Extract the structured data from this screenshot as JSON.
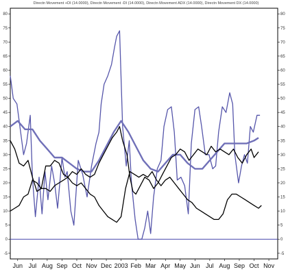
{
  "chart_data": {
    "type": "line",
    "title": "Directn Movement +DI (14.0000), Directn Movement -DI (14.0000), Directn Movement ADX (14.0000), Directn Movement DX (14.0000)",
    "ylim": [
      -7,
      82
    ],
    "y_ticks": [
      -5,
      0,
      5,
      10,
      15,
      20,
      25,
      30,
      35,
      40,
      45,
      50,
      55,
      60,
      65,
      70,
      75,
      80
    ],
    "x_ticks": [
      "Jun",
      "Jul",
      "Aug",
      "Sep",
      "Oct",
      "Nov",
      "Dec",
      "2003",
      "Feb",
      "Mar",
      "Apr",
      "May",
      "Jun",
      "Jul",
      "Aug",
      "Sep",
      "Oct",
      "Nov"
    ],
    "x_range": [
      0,
      18.1
    ],
    "grid": false,
    "zero_line": 0,
    "colors": {
      "dx": "#5555aa",
      "adx": "#7070b8",
      "di": "#000000",
      "zero": "#4444aa"
    },
    "series": [
      {
        "key": "dx",
        "stroke_width": 1.3,
        "points": [
          [
            0,
            58
          ],
          [
            0.2,
            50
          ],
          [
            0.45,
            48
          ],
          [
            0.7,
            38
          ],
          [
            0.9,
            30
          ],
          [
            1.1,
            34
          ],
          [
            1.35,
            44
          ],
          [
            1.5,
            22
          ],
          [
            1.7,
            8
          ],
          [
            1.95,
            22
          ],
          [
            2.15,
            9
          ],
          [
            2.35,
            24
          ],
          [
            2.55,
            14
          ],
          [
            2.8,
            26
          ],
          [
            3.0,
            20
          ],
          [
            3.2,
            11
          ],
          [
            3.5,
            29
          ],
          [
            3.7,
            22
          ],
          [
            3.85,
            24
          ],
          [
            4.1,
            10
          ],
          [
            4.3,
            5
          ],
          [
            4.6,
            28
          ],
          [
            4.9,
            23
          ],
          [
            5.2,
            15
          ],
          [
            5.5,
            26
          ],
          [
            5.8,
            34
          ],
          [
            6.0,
            38
          ],
          [
            6.15,
            48
          ],
          [
            6.35,
            55
          ],
          [
            6.6,
            58
          ],
          [
            6.85,
            62
          ],
          [
            7.05,
            68
          ],
          [
            7.2,
            72
          ],
          [
            7.4,
            74
          ],
          [
            7.6,
            40
          ],
          [
            7.85,
            26
          ],
          [
            8.05,
            35
          ],
          [
            8.2,
            20
          ],
          [
            8.45,
            7
          ],
          [
            8.65,
            0
          ],
          [
            8.9,
            0
          ],
          [
            9.1,
            4
          ],
          [
            9.3,
            10
          ],
          [
            9.5,
            2
          ],
          [
            9.7,
            15
          ],
          [
            9.95,
            25
          ],
          [
            10.2,
            28
          ],
          [
            10.4,
            40
          ],
          [
            10.65,
            46
          ],
          [
            10.9,
            47
          ],
          [
            11.1,
            38
          ],
          [
            11.3,
            21
          ],
          [
            11.55,
            22
          ],
          [
            11.8,
            19
          ],
          [
            12.05,
            9
          ],
          [
            12.25,
            34
          ],
          [
            12.5,
            46
          ],
          [
            12.75,
            47
          ],
          [
            12.95,
            40
          ],
          [
            13.2,
            30
          ],
          [
            13.45,
            30
          ],
          [
            13.7,
            25
          ],
          [
            13.9,
            26
          ],
          [
            14.1,
            38
          ],
          [
            14.35,
            47
          ],
          [
            14.6,
            45
          ],
          [
            14.85,
            52
          ],
          [
            15.05,
            48
          ],
          [
            15.2,
            30
          ],
          [
            15.45,
            20
          ],
          [
            15.65,
            26
          ],
          [
            15.85,
            30
          ],
          [
            16.05,
            27
          ],
          [
            16.25,
            40
          ],
          [
            16.45,
            38
          ],
          [
            16.7,
            44
          ],
          [
            16.9,
            44
          ]
        ]
      },
      {
        "key": "adx",
        "stroke_width": 2.4,
        "points": [
          [
            0,
            40
          ],
          [
            0.5,
            42
          ],
          [
            1,
            39
          ],
          [
            1.5,
            39
          ],
          [
            2,
            35
          ],
          [
            2.5,
            32
          ],
          [
            3,
            29
          ],
          [
            3.5,
            29
          ],
          [
            4,
            27
          ],
          [
            4.5,
            25
          ],
          [
            5,
            24
          ],
          [
            5.5,
            24
          ],
          [
            6,
            28
          ],
          [
            6.5,
            33
          ],
          [
            7,
            38
          ],
          [
            7.5,
            42
          ],
          [
            8,
            38
          ],
          [
            8.5,
            33
          ],
          [
            9,
            28
          ],
          [
            9.5,
            25
          ],
          [
            10,
            24
          ],
          [
            10.5,
            27
          ],
          [
            11,
            30
          ],
          [
            11.5,
            30
          ],
          [
            12,
            27
          ],
          [
            12.5,
            25
          ],
          [
            13,
            25
          ],
          [
            13.5,
            28
          ],
          [
            14,
            31
          ],
          [
            14.5,
            34
          ],
          [
            15,
            34
          ],
          [
            15.5,
            34
          ],
          [
            16,
            34
          ],
          [
            16.5,
            35
          ],
          [
            16.8,
            36
          ]
        ]
      },
      {
        "key": "di_a",
        "stroke_width": 1.3,
        "points": [
          [
            0,
            35
          ],
          [
            0.3,
            32
          ],
          [
            0.6,
            27
          ],
          [
            0.9,
            26
          ],
          [
            1.2,
            28
          ],
          [
            1.5,
            22
          ],
          [
            1.8,
            17
          ],
          [
            2.1,
            18
          ],
          [
            2.4,
            26
          ],
          [
            2.7,
            26
          ],
          [
            3.0,
            28
          ],
          [
            3.3,
            27
          ],
          [
            3.6,
            23
          ],
          [
            3.9,
            22
          ],
          [
            4.2,
            24
          ],
          [
            4.5,
            23
          ],
          [
            4.8,
            25
          ],
          [
            5.1,
            23
          ],
          [
            5.4,
            22
          ],
          [
            5.7,
            23
          ],
          [
            6.0,
            27
          ],
          [
            6.3,
            30
          ],
          [
            6.6,
            33
          ],
          [
            6.9,
            36
          ],
          [
            7.2,
            38
          ],
          [
            7.4,
            40
          ],
          [
            7.6,
            35
          ],
          [
            7.9,
            30
          ],
          [
            8.1,
            22
          ],
          [
            8.3,
            17
          ],
          [
            8.5,
            16
          ],
          [
            8.8,
            19
          ],
          [
            9.1,
            22
          ],
          [
            9.4,
            21
          ],
          [
            9.7,
            18
          ],
          [
            10.0,
            20
          ],
          [
            10.3,
            23
          ],
          [
            10.6,
            26
          ],
          [
            10.9,
            29
          ],
          [
            11.2,
            30
          ],
          [
            11.5,
            32
          ],
          [
            11.8,
            31
          ],
          [
            12.1,
            28
          ],
          [
            12.4,
            30
          ],
          [
            12.7,
            32
          ],
          [
            13.0,
            31
          ],
          [
            13.3,
            30
          ],
          [
            13.6,
            33
          ],
          [
            13.9,
            31
          ],
          [
            14.2,
            32
          ],
          [
            14.5,
            31
          ],
          [
            14.8,
            30
          ],
          [
            15.1,
            32
          ],
          [
            15.4,
            29
          ],
          [
            15.7,
            27
          ],
          [
            16.0,
            30
          ],
          [
            16.3,
            32
          ],
          [
            16.5,
            29
          ],
          [
            16.8,
            31
          ]
        ]
      },
      {
        "key": "di_b",
        "stroke_width": 1.3,
        "points": [
          [
            0,
            10
          ],
          [
            0.3,
            11
          ],
          [
            0.6,
            12
          ],
          [
            0.9,
            15
          ],
          [
            1.2,
            16
          ],
          [
            1.5,
            21
          ],
          [
            1.8,
            20
          ],
          [
            2.1,
            18
          ],
          [
            2.4,
            18
          ],
          [
            2.7,
            17
          ],
          [
            3.0,
            19
          ],
          [
            3.3,
            20
          ],
          [
            3.6,
            21
          ],
          [
            3.9,
            22
          ],
          [
            4.2,
            20
          ],
          [
            4.5,
            19
          ],
          [
            4.8,
            20
          ],
          [
            5.1,
            18
          ],
          [
            5.4,
            16
          ],
          [
            5.7,
            15
          ],
          [
            6.0,
            12
          ],
          [
            6.3,
            10
          ],
          [
            6.6,
            8
          ],
          [
            6.9,
            7
          ],
          [
            7.2,
            6
          ],
          [
            7.5,
            8
          ],
          [
            7.8,
            18
          ],
          [
            8.1,
            24
          ],
          [
            8.4,
            23
          ],
          [
            8.7,
            22
          ],
          [
            9.0,
            23
          ],
          [
            9.3,
            22
          ],
          [
            9.6,
            24
          ],
          [
            9.9,
            21
          ],
          [
            10.2,
            19
          ],
          [
            10.5,
            21
          ],
          [
            10.8,
            22
          ],
          [
            11.1,
            20
          ],
          [
            11.4,
            18
          ],
          [
            11.7,
            16
          ],
          [
            12.0,
            14
          ],
          [
            12.3,
            13
          ],
          [
            12.6,
            11
          ],
          [
            12.9,
            10
          ],
          [
            13.2,
            9
          ],
          [
            13.5,
            8
          ],
          [
            13.8,
            7
          ],
          [
            14.1,
            7
          ],
          [
            14.4,
            9
          ],
          [
            14.7,
            14
          ],
          [
            15.0,
            16
          ],
          [
            15.3,
            16
          ],
          [
            15.6,
            15
          ],
          [
            15.9,
            14
          ],
          [
            16.2,
            13
          ],
          [
            16.5,
            12
          ],
          [
            16.8,
            11
          ],
          [
            17.0,
            12
          ]
        ]
      }
    ]
  }
}
